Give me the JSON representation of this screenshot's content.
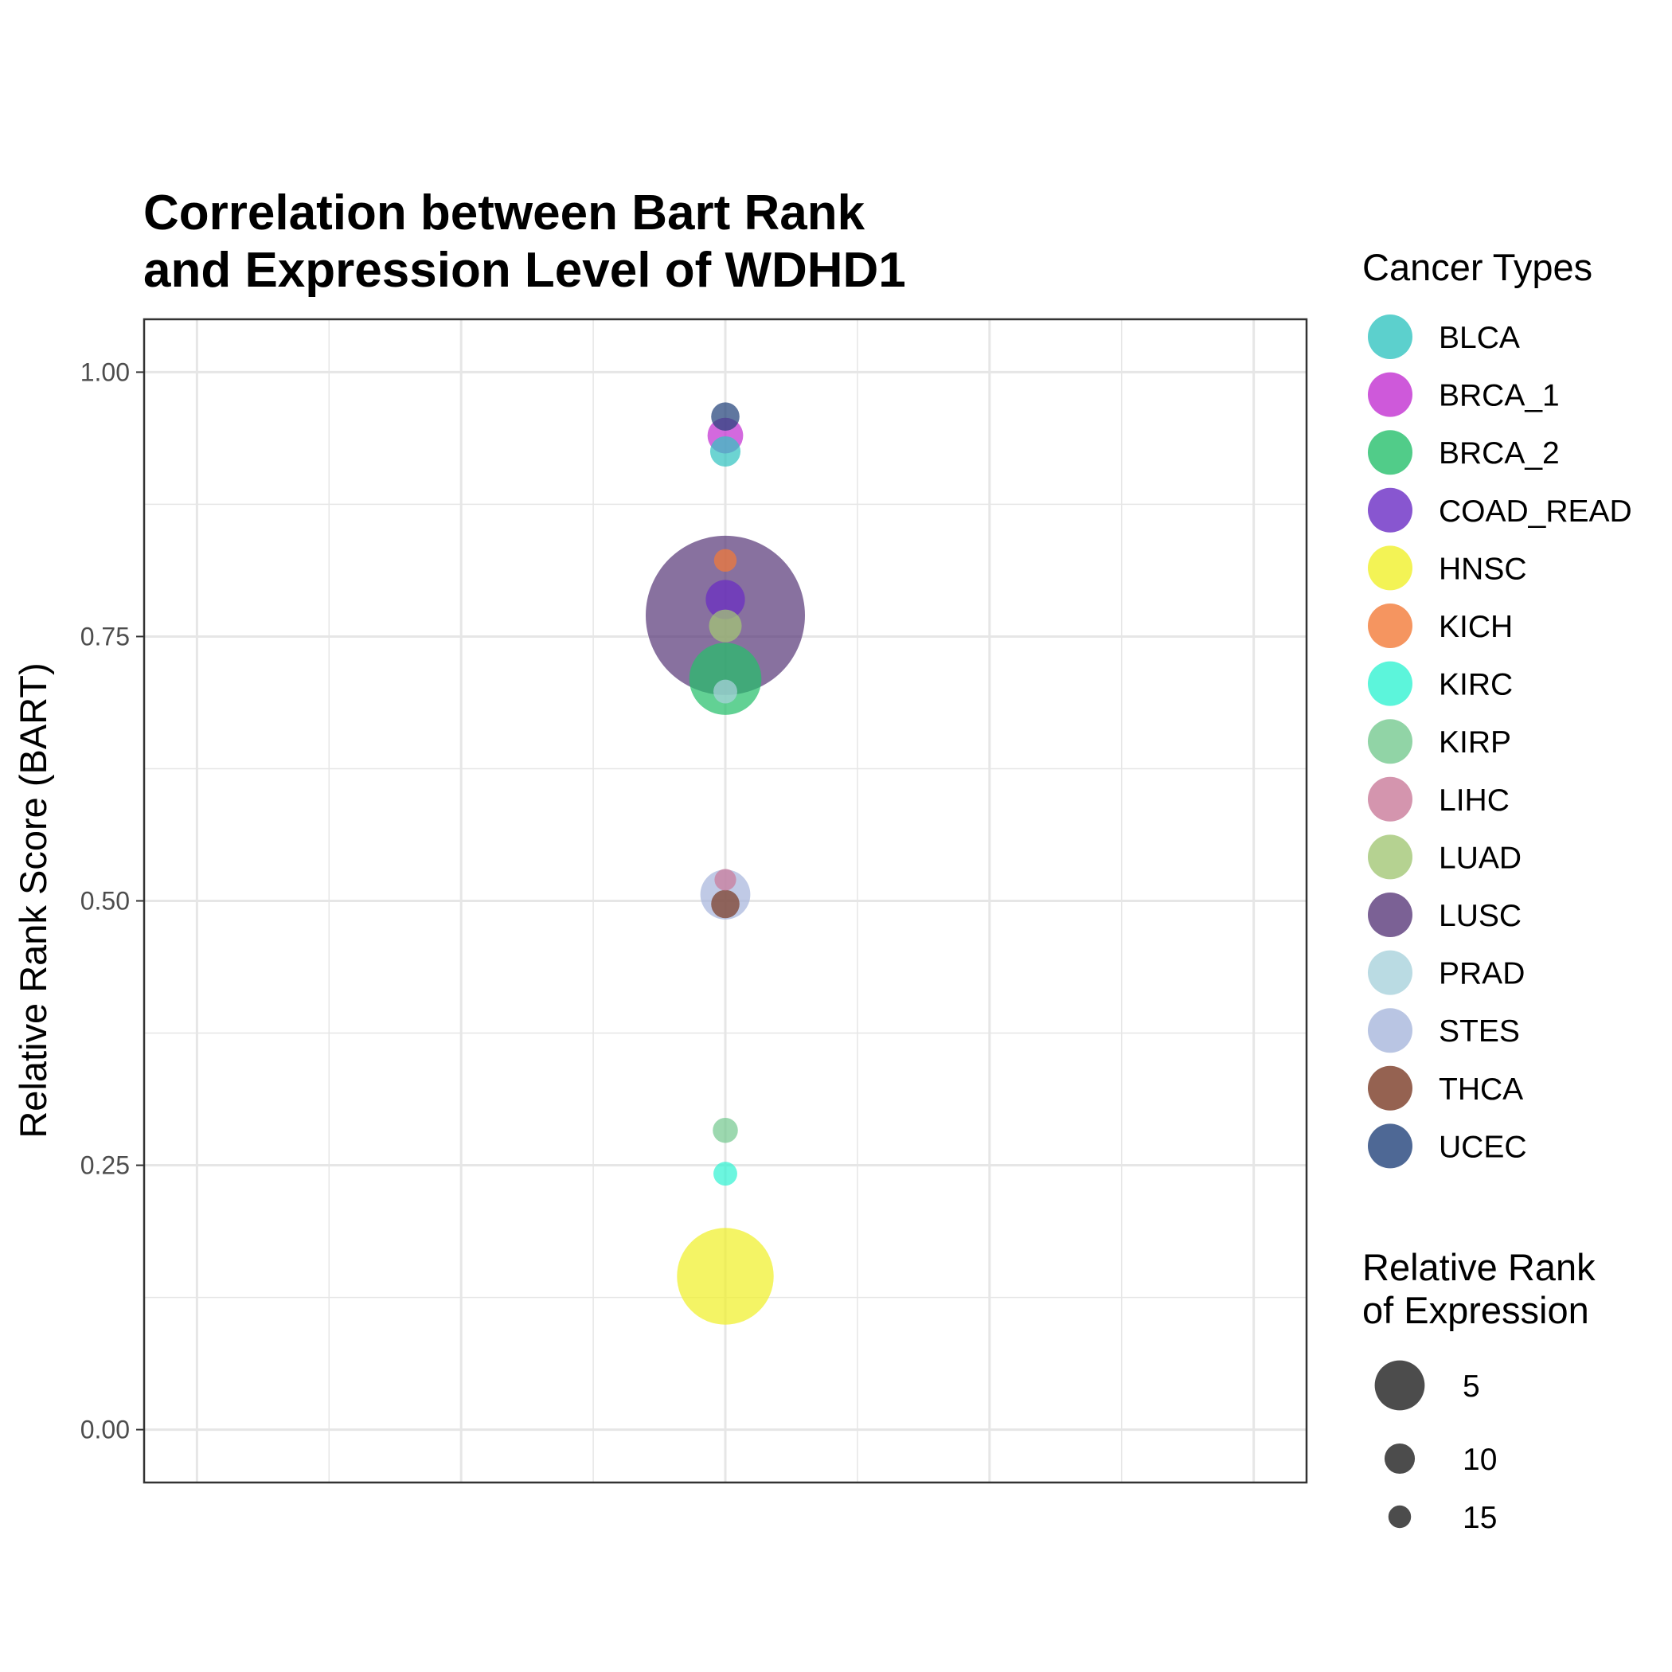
{
  "chart_data": {
    "type": "scatter",
    "title_lines": [
      "Correlation between Bart Rank",
      "and Expression Level of WDHD1"
    ],
    "ylabel": "Relative Rank Score (BART)",
    "xlabel": "",
    "ylim": [
      -0.05,
      1.05
    ],
    "yticks": [
      "0.00",
      "0.25",
      "0.50",
      "0.75",
      "1.00"
    ],
    "ytick_values": [
      0,
      0.25,
      0.5,
      0.75,
      1.0
    ],
    "grid": true,
    "legend_position": "right",
    "color_legend_title": "Cancer Types",
    "size_legend_title_lines": [
      "Relative Rank",
      "of Expression"
    ],
    "size_legend": [
      {
        "label": "5",
        "value": 5
      },
      {
        "label": "10",
        "value": 10
      },
      {
        "label": "15",
        "value": 15
      }
    ],
    "series": [
      {
        "name": "BLCA",
        "color": "#33C4C0",
        "y": 0.925,
        "size": 10
      },
      {
        "name": "BRCA_1",
        "color": "#C22FD1",
        "y": 0.94,
        "size": 8
      },
      {
        "name": "BRCA_2",
        "color": "#26BF6B",
        "y": 0.71,
        "size": 3
      },
      {
        "name": "COAD_READ",
        "color": "#6A2CC4",
        "y": 0.785,
        "size": 7
      },
      {
        "name": "HNSC",
        "color": "#F0F02A",
        "y": 0.145,
        "size": 2
      },
      {
        "name": "KICH",
        "color": "#F27A38",
        "y": 0.822,
        "size": 15
      },
      {
        "name": "KIRC",
        "color": "#33F2D2",
        "y": 0.242,
        "size": 14
      },
      {
        "name": "KIRP",
        "color": "#76C990",
        "y": 0.283,
        "size": 13
      },
      {
        "name": "LIHC",
        "color": "#C97A9A",
        "y": 0.52,
        "size": 16
      },
      {
        "name": "LUAD",
        "color": "#A3C775",
        "y": 0.76,
        "size": 9
      },
      {
        "name": "LUSC",
        "color": "#5A3A7A",
        "y": 0.77,
        "size": 1
      },
      {
        "name": "PRAD",
        "color": "#A9D2DC",
        "y": 0.698,
        "size": 14
      },
      {
        "name": "STES",
        "color": "#A7B6DC",
        "y": 0.506,
        "size": 5
      },
      {
        "name": "THCA",
        "color": "#7A3B25",
        "y": 0.497,
        "size": 11
      },
      {
        "name": "UCEC",
        "color": "#22427A",
        "y": 0.958,
        "size": 11
      }
    ]
  }
}
